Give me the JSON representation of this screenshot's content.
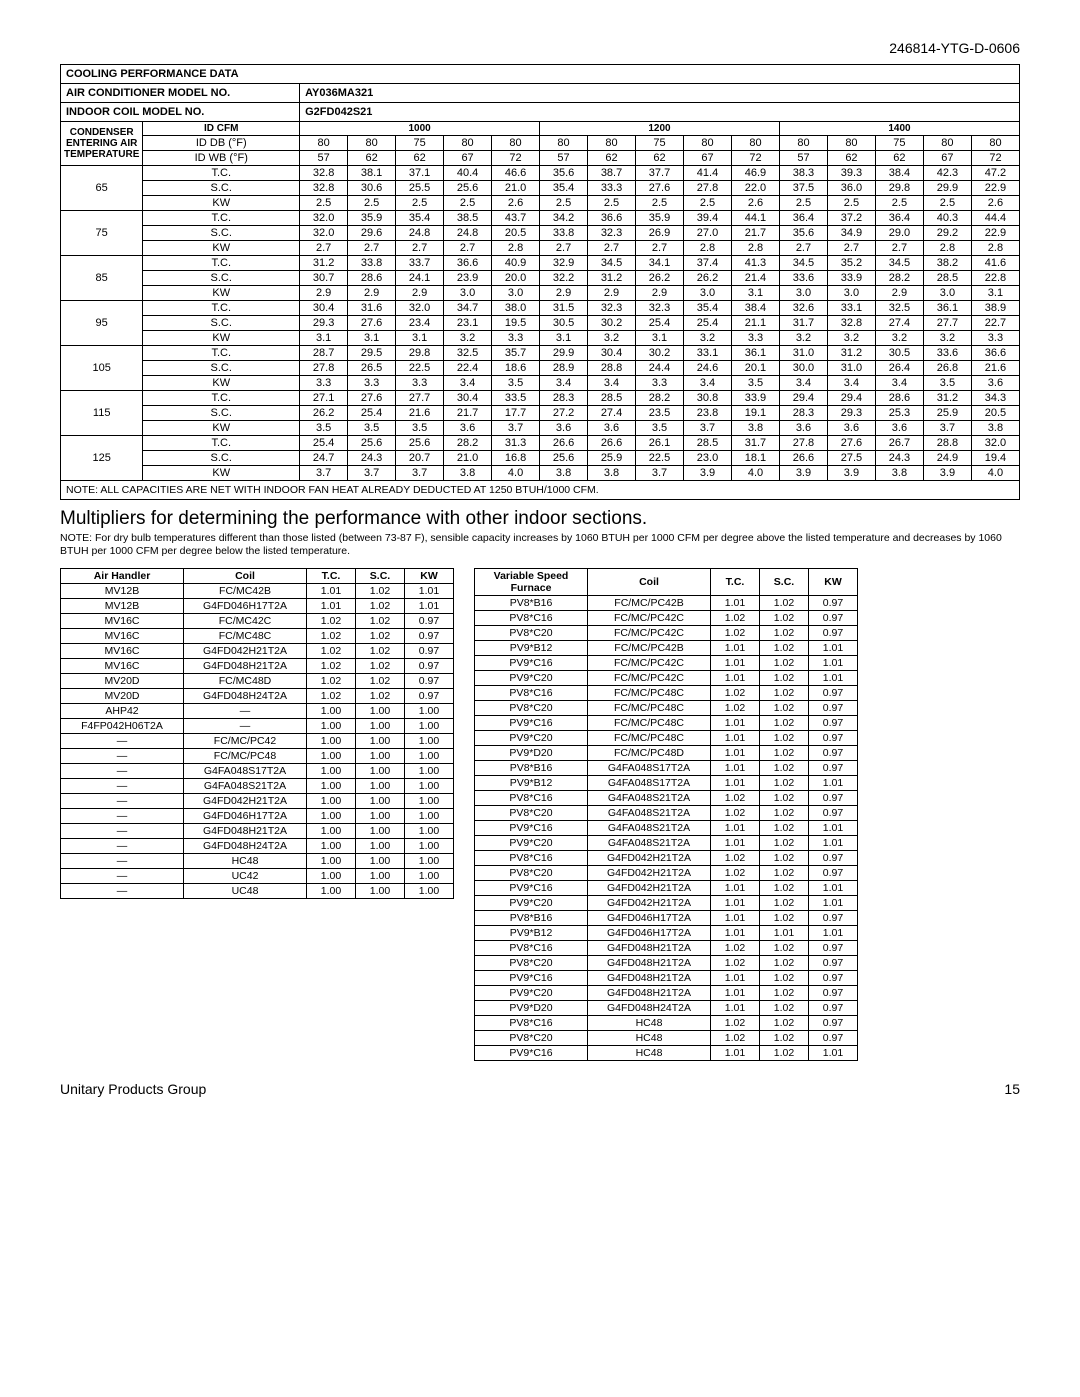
{
  "doc_code": "246814-YTG-D-0606",
  "title1": "COOLING PERFORMANCE DATA",
  "ac_label": "AIR CONDITIONER MODEL NO.",
  "ac_model": "AY036MA321",
  "coil_label": "INDOOR COIL MODEL NO.",
  "coil_model": "G2FD042S21",
  "cond_lbl": "CONDENSER ENTERING AIR TEMPERATURE",
  "idcfm": "ID CFM",
  "iddb": "ID DB (°F)",
  "idwb": "ID WB (°F)",
  "cfm": [
    "1000",
    "1200",
    "1400"
  ],
  "db": [
    "80",
    "80",
    "75",
    "80",
    "80",
    "80",
    "80",
    "75",
    "80",
    "80",
    "80",
    "80",
    "75",
    "80",
    "80"
  ],
  "wb": [
    "57",
    "62",
    "62",
    "67",
    "72",
    "57",
    "62",
    "62",
    "67",
    "72",
    "57",
    "62",
    "62",
    "67",
    "72"
  ],
  "metrics": [
    "T.C.",
    "S.C.",
    "KW"
  ],
  "groups": [
    {
      "t": "65",
      "r": [
        [
          "32.8",
          "38.1",
          "37.1",
          "40.4",
          "46.6",
          "35.6",
          "38.7",
          "37.7",
          "41.4",
          "46.9",
          "38.3",
          "39.3",
          "38.4",
          "42.3",
          "47.2"
        ],
        [
          "32.8",
          "30.6",
          "25.5",
          "25.6",
          "21.0",
          "35.4",
          "33.3",
          "27.6",
          "27.8",
          "22.0",
          "37.5",
          "36.0",
          "29.8",
          "29.9",
          "22.9"
        ],
        [
          "2.5",
          "2.5",
          "2.5",
          "2.5",
          "2.6",
          "2.5",
          "2.5",
          "2.5",
          "2.5",
          "2.6",
          "2.5",
          "2.5",
          "2.5",
          "2.5",
          "2.6"
        ]
      ]
    },
    {
      "t": "75",
      "r": [
        [
          "32.0",
          "35.9",
          "35.4",
          "38.5",
          "43.7",
          "34.2",
          "36.6",
          "35.9",
          "39.4",
          "44.1",
          "36.4",
          "37.2",
          "36.4",
          "40.3",
          "44.4"
        ],
        [
          "32.0",
          "29.6",
          "24.8",
          "24.8",
          "20.5",
          "33.8",
          "32.3",
          "26.9",
          "27.0",
          "21.7",
          "35.6",
          "34.9",
          "29.0",
          "29.2",
          "22.9"
        ],
        [
          "2.7",
          "2.7",
          "2.7",
          "2.7",
          "2.8",
          "2.7",
          "2.7",
          "2.7",
          "2.8",
          "2.8",
          "2.7",
          "2.7",
          "2.7",
          "2.8",
          "2.8"
        ]
      ]
    },
    {
      "t": "85",
      "r": [
        [
          "31.2",
          "33.8",
          "33.7",
          "36.6",
          "40.9",
          "32.9",
          "34.5",
          "34.1",
          "37.4",
          "41.3",
          "34.5",
          "35.2",
          "34.5",
          "38.2",
          "41.6"
        ],
        [
          "30.7",
          "28.6",
          "24.1",
          "23.9",
          "20.0",
          "32.2",
          "31.2",
          "26.2",
          "26.2",
          "21.4",
          "33.6",
          "33.9",
          "28.2",
          "28.5",
          "22.8"
        ],
        [
          "2.9",
          "2.9",
          "2.9",
          "3.0",
          "3.0",
          "2.9",
          "2.9",
          "2.9",
          "3.0",
          "3.1",
          "3.0",
          "3.0",
          "2.9",
          "3.0",
          "3.1"
        ]
      ]
    },
    {
      "t": "95",
      "r": [
        [
          "30.4",
          "31.6",
          "32.0",
          "34.7",
          "38.0",
          "31.5",
          "32.3",
          "32.3",
          "35.4",
          "38.4",
          "32.6",
          "33.1",
          "32.5",
          "36.1",
          "38.9"
        ],
        [
          "29.3",
          "27.6",
          "23.4",
          "23.1",
          "19.5",
          "30.5",
          "30.2",
          "25.4",
          "25.4",
          "21.1",
          "31.7",
          "32.8",
          "27.4",
          "27.7",
          "22.7"
        ],
        [
          "3.1",
          "3.1",
          "3.1",
          "3.2",
          "3.3",
          "3.1",
          "3.2",
          "3.1",
          "3.2",
          "3.3",
          "3.2",
          "3.2",
          "3.2",
          "3.2",
          "3.3"
        ]
      ]
    },
    {
      "t": "105",
      "r": [
        [
          "28.7",
          "29.5",
          "29.8",
          "32.5",
          "35.7",
          "29.9",
          "30.4",
          "30.2",
          "33.1",
          "36.1",
          "31.0",
          "31.2",
          "30.5",
          "33.6",
          "36.6"
        ],
        [
          "27.8",
          "26.5",
          "22.5",
          "22.4",
          "18.6",
          "28.9",
          "28.8",
          "24.4",
          "24.6",
          "20.1",
          "30.0",
          "31.0",
          "26.4",
          "26.8",
          "21.6"
        ],
        [
          "3.3",
          "3.3",
          "3.3",
          "3.4",
          "3.5",
          "3.4",
          "3.4",
          "3.3",
          "3.4",
          "3.5",
          "3.4",
          "3.4",
          "3.4",
          "3.5",
          "3.6"
        ]
      ]
    },
    {
      "t": "115",
      "r": [
        [
          "27.1",
          "27.6",
          "27.7",
          "30.4",
          "33.5",
          "28.3",
          "28.5",
          "28.2",
          "30.8",
          "33.9",
          "29.4",
          "29.4",
          "28.6",
          "31.2",
          "34.3"
        ],
        [
          "26.2",
          "25.4",
          "21.6",
          "21.7",
          "17.7",
          "27.2",
          "27.4",
          "23.5",
          "23.8",
          "19.1",
          "28.3",
          "29.3",
          "25.3",
          "25.9",
          "20.5"
        ],
        [
          "3.5",
          "3.5",
          "3.5",
          "3.6",
          "3.7",
          "3.6",
          "3.6",
          "3.5",
          "3.7",
          "3.8",
          "3.6",
          "3.6",
          "3.6",
          "3.7",
          "3.8"
        ]
      ]
    },
    {
      "t": "125",
      "r": [
        [
          "25.4",
          "25.6",
          "25.6",
          "28.2",
          "31.3",
          "26.6",
          "26.6",
          "26.1",
          "28.5",
          "31.7",
          "27.8",
          "27.6",
          "26.7",
          "28.8",
          "32.0"
        ],
        [
          "24.7",
          "24.3",
          "20.7",
          "21.0",
          "16.8",
          "25.6",
          "25.9",
          "22.5",
          "23.0",
          "18.1",
          "26.6",
          "27.5",
          "24.3",
          "24.9",
          "19.4"
        ],
        [
          "3.7",
          "3.7",
          "3.7",
          "3.8",
          "4.0",
          "3.8",
          "3.8",
          "3.7",
          "3.9",
          "4.0",
          "3.9",
          "3.9",
          "3.8",
          "3.9",
          "4.0"
        ]
      ]
    }
  ],
  "main_note": "NOTE: ALL CAPACITIES ARE NET WITH INDOOR FAN HEAT ALREADY DEDUCTED AT 1250 BTUH/1000 CFM.",
  "mult_title": "Multipliers for determining the performance with other indoor sections.",
  "mult_note": "NOTE: For dry bulb temperatures different than those listed (between 73-87 F), sensible capacity increases by 1060 BTUH per 1000 CFM per degree above the listed temperature and decreases by 1060 BTUH per 1000 CFM per degree below the listed temperature.",
  "t1": {
    "h": [
      "Air Handler",
      "Coil",
      "T.C.",
      "S.C.",
      "KW"
    ],
    "r": [
      [
        "MV12B",
        "FC/MC42B",
        "1.01",
        "1.02",
        "1.01"
      ],
      [
        "MV12B",
        "G4FD046H17T2A",
        "1.01",
        "1.02",
        "1.01"
      ],
      [
        "MV16C",
        "FC/MC42C",
        "1.02",
        "1.02",
        "0.97"
      ],
      [
        "MV16C",
        "FC/MC48C",
        "1.02",
        "1.02",
        "0.97"
      ],
      [
        "MV16C",
        "G4FD042H21T2A",
        "1.02",
        "1.02",
        "0.97"
      ],
      [
        "MV16C",
        "G4FD048H21T2A",
        "1.02",
        "1.02",
        "0.97"
      ],
      [
        "MV20D",
        "FC/MC48D",
        "1.02",
        "1.02",
        "0.97"
      ],
      [
        "MV20D",
        "G4FD048H24T2A",
        "1.02",
        "1.02",
        "0.97"
      ],
      [
        "AHP42",
        "—",
        "1.00",
        "1.00",
        "1.00"
      ],
      [
        "F4FP042H06T2A",
        "—",
        "1.00",
        "1.00",
        "1.00"
      ],
      [
        "—",
        "FC/MC/PC42",
        "1.00",
        "1.00",
        "1.00"
      ],
      [
        "—",
        "FC/MC/PC48",
        "1.00",
        "1.00",
        "1.00"
      ],
      [
        "—",
        "G4FA048S17T2A",
        "1.00",
        "1.00",
        "1.00"
      ],
      [
        "—",
        "G4FA048S21T2A",
        "1.00",
        "1.00",
        "1.00"
      ],
      [
        "—",
        "G4FD042H21T2A",
        "1.00",
        "1.00",
        "1.00"
      ],
      [
        "—",
        "G4FD046H17T2A",
        "1.00",
        "1.00",
        "1.00"
      ],
      [
        "—",
        "G4FD048H21T2A",
        "1.00",
        "1.00",
        "1.00"
      ],
      [
        "—",
        "G4FD048H24T2A",
        "1.00",
        "1.00",
        "1.00"
      ],
      [
        "—",
        "HC48",
        "1.00",
        "1.00",
        "1.00"
      ],
      [
        "—",
        "UC42",
        "1.00",
        "1.00",
        "1.00"
      ],
      [
        "—",
        "UC48",
        "1.00",
        "1.00",
        "1.00"
      ]
    ]
  },
  "t2": {
    "h": [
      "Variable Speed Furnace",
      "Coil",
      "T.C.",
      "S.C.",
      "KW"
    ],
    "r": [
      [
        "PV8*B16",
        "FC/MC/PC42B",
        "1.01",
        "1.02",
        "0.97"
      ],
      [
        "PV8*C16",
        "FC/MC/PC42C",
        "1.02",
        "1.02",
        "0.97"
      ],
      [
        "PV8*C20",
        "FC/MC/PC42C",
        "1.02",
        "1.02",
        "0.97"
      ],
      [
        "PV9*B12",
        "FC/MC/PC42B",
        "1.01",
        "1.02",
        "1.01"
      ],
      [
        "PV9*C16",
        "FC/MC/PC42C",
        "1.01",
        "1.02",
        "1.01"
      ],
      [
        "PV9*C20",
        "FC/MC/PC42C",
        "1.01",
        "1.02",
        "1.01"
      ],
      [
        "PV8*C16",
        "FC/MC/PC48C",
        "1.02",
        "1.02",
        "0.97"
      ],
      [
        "PV8*C20",
        "FC/MC/PC48C",
        "1.02",
        "1.02",
        "0.97"
      ],
      [
        "PV9*C16",
        "FC/MC/PC48C",
        "1.01",
        "1.02",
        "0.97"
      ],
      [
        "PV9*C20",
        "FC/MC/PC48C",
        "1.01",
        "1.02",
        "0.97"
      ],
      [
        "PV9*D20",
        "FC/MC/PC48D",
        "1.01",
        "1.02",
        "0.97"
      ],
      [
        "PV8*B16",
        "G4FA048S17T2A",
        "1.01",
        "1.02",
        "0.97"
      ],
      [
        "PV9*B12",
        "G4FA048S17T2A",
        "1.01",
        "1.02",
        "1.01"
      ],
      [
        "PV8*C16",
        "G4FA048S21T2A",
        "1.02",
        "1.02",
        "0.97"
      ],
      [
        "PV8*C20",
        "G4FA048S21T2A",
        "1.02",
        "1.02",
        "0.97"
      ],
      [
        "PV9*C16",
        "G4FA048S21T2A",
        "1.01",
        "1.02",
        "1.01"
      ],
      [
        "PV9*C20",
        "G4FA048S21T2A",
        "1.01",
        "1.02",
        "1.01"
      ],
      [
        "PV8*C16",
        "G4FD042H21T2A",
        "1.02",
        "1.02",
        "0.97"
      ],
      [
        "PV8*C20",
        "G4FD042H21T2A",
        "1.02",
        "1.02",
        "0.97"
      ],
      [
        "PV9*C16",
        "G4FD042H21T2A",
        "1.01",
        "1.02",
        "1.01"
      ],
      [
        "PV9*C20",
        "G4FD042H21T2A",
        "1.01",
        "1.02",
        "1.01"
      ],
      [
        "PV8*B16",
        "G4FD046H17T2A",
        "1.01",
        "1.02",
        "0.97"
      ],
      [
        "PV9*B12",
        "G4FD046H17T2A",
        "1.01",
        "1.01",
        "1.01"
      ],
      [
        "PV8*C16",
        "G4FD048H21T2A",
        "1.02",
        "1.02",
        "0.97"
      ],
      [
        "PV8*C20",
        "G4FD048H21T2A",
        "1.02",
        "1.02",
        "0.97"
      ],
      [
        "PV9*C16",
        "G4FD048H21T2A",
        "1.01",
        "1.02",
        "0.97"
      ],
      [
        "PV9*C20",
        "G4FD048H21T2A",
        "1.01",
        "1.02",
        "0.97"
      ],
      [
        "PV9*D20",
        "G4FD048H24T2A",
        "1.01",
        "1.02",
        "0.97"
      ],
      [
        "PV8*C16",
        "HC48",
        "1.02",
        "1.02",
        "0.97"
      ],
      [
        "PV8*C20",
        "HC48",
        "1.02",
        "1.02",
        "0.97"
      ],
      [
        "PV9*C16",
        "HC48",
        "1.01",
        "1.02",
        "1.01"
      ]
    ]
  },
  "footer_l": "Unitary Products Group",
  "footer_r": "15"
}
